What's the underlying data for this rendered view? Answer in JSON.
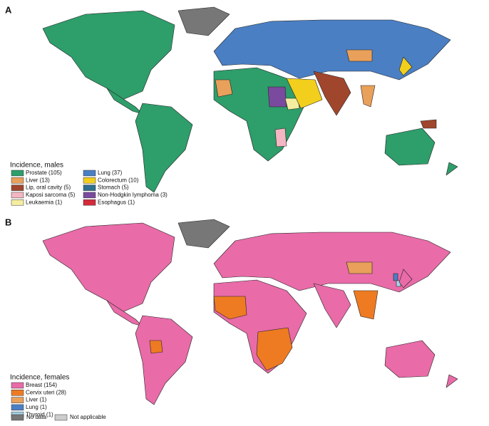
{
  "panels": [
    {
      "label": "A",
      "legend_title": "Incidence, males",
      "entries": [
        {
          "label": "Prostate (105)",
          "color": "#2e9e6b"
        },
        {
          "label": "Liver (13)",
          "color": "#e8a05a"
        },
        {
          "label": "Lip, oral cavity (5)",
          "color": "#a0462d"
        },
        {
          "label": "Kaposi sarcoma (5)",
          "color": "#f4b6c2"
        },
        {
          "label": "Leukaemia (1)",
          "color": "#f5eda0"
        },
        {
          "label": "Lung (37)",
          "color": "#4a7fc4"
        },
        {
          "label": "Colorectum (10)",
          "color": "#f2cf1d"
        },
        {
          "label": "Stomach (5)",
          "color": "#2e6e8e"
        },
        {
          "label": "Non-Hodgkin lymphoma (3)",
          "color": "#7a4a9e"
        },
        {
          "label": "Esophagus (1)",
          "color": "#d42a3a"
        }
      ]
    },
    {
      "label": "B",
      "legend_title": "Incidence, females",
      "entries": [
        {
          "label": "Breast (154)",
          "color": "#e96ba8"
        },
        {
          "label": "Cervix uteri (28)",
          "color": "#ee7b22"
        },
        {
          "label": "Liver (1)",
          "color": "#e8a05a"
        },
        {
          "label": "Lung (1)",
          "color": "#4a7fc4"
        },
        {
          "label": "Thyroid (1)",
          "color": "#a5d3e6"
        }
      ]
    }
  ],
  "footer": [
    {
      "label": "No data",
      "color": "#777777"
    },
    {
      "label": "Not applicable",
      "color": "#cccccc"
    }
  ]
}
